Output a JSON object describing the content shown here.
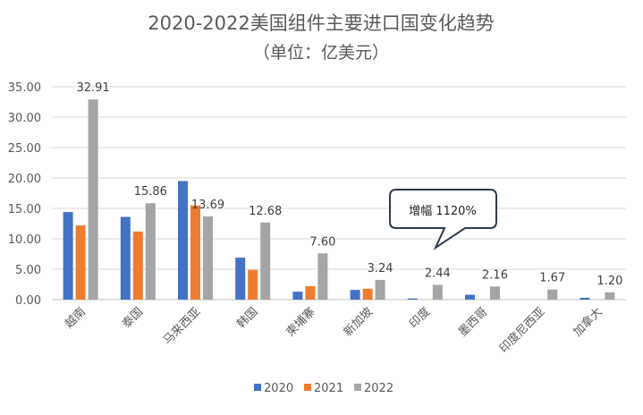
{
  "chart_data": {
    "type": "bar",
    "title": "2020-2022美国组件主要进口国变化趋势",
    "subtitle": "（单位：亿美元）",
    "categories": [
      "越南",
      "泰国",
      "马来西亚",
      "韩国",
      "柬埔寨",
      "新加坡",
      "印度",
      "墨西哥",
      "印度尼西亚",
      "加拿大"
    ],
    "series": [
      {
        "name": "2020",
        "color": "#4472C4",
        "values": [
          14.4,
          13.6,
          19.5,
          6.9,
          1.3,
          1.6,
          0.2,
          0.8,
          0.0,
          0.3
        ]
      },
      {
        "name": "2021",
        "color": "#ED7D31",
        "values": [
          12.2,
          11.2,
          15.5,
          4.9,
          2.2,
          1.8,
          0.0,
          0.0,
          0.0,
          0.0
        ]
      },
      {
        "name": "2022",
        "color": "#A5A5A5",
        "values": [
          32.91,
          15.86,
          13.69,
          12.68,
          7.6,
          3.24,
          2.44,
          2.16,
          1.67,
          1.2
        ]
      }
    ],
    "data_labels": [
      "32.91",
      "15.86",
      "13.69",
      "12.68",
      "7.60",
      "3.24",
      "2.44",
      "2.16",
      "1.67",
      "1.20"
    ],
    "ytick_labels": [
      "0.00",
      "5.00",
      "10.00",
      "15.00",
      "20.00",
      "25.00",
      "30.00",
      "35.00"
    ],
    "ylim": [
      0,
      35
    ],
    "grid": true,
    "legend_position": "bottom",
    "annotation": "增幅 1120%"
  }
}
